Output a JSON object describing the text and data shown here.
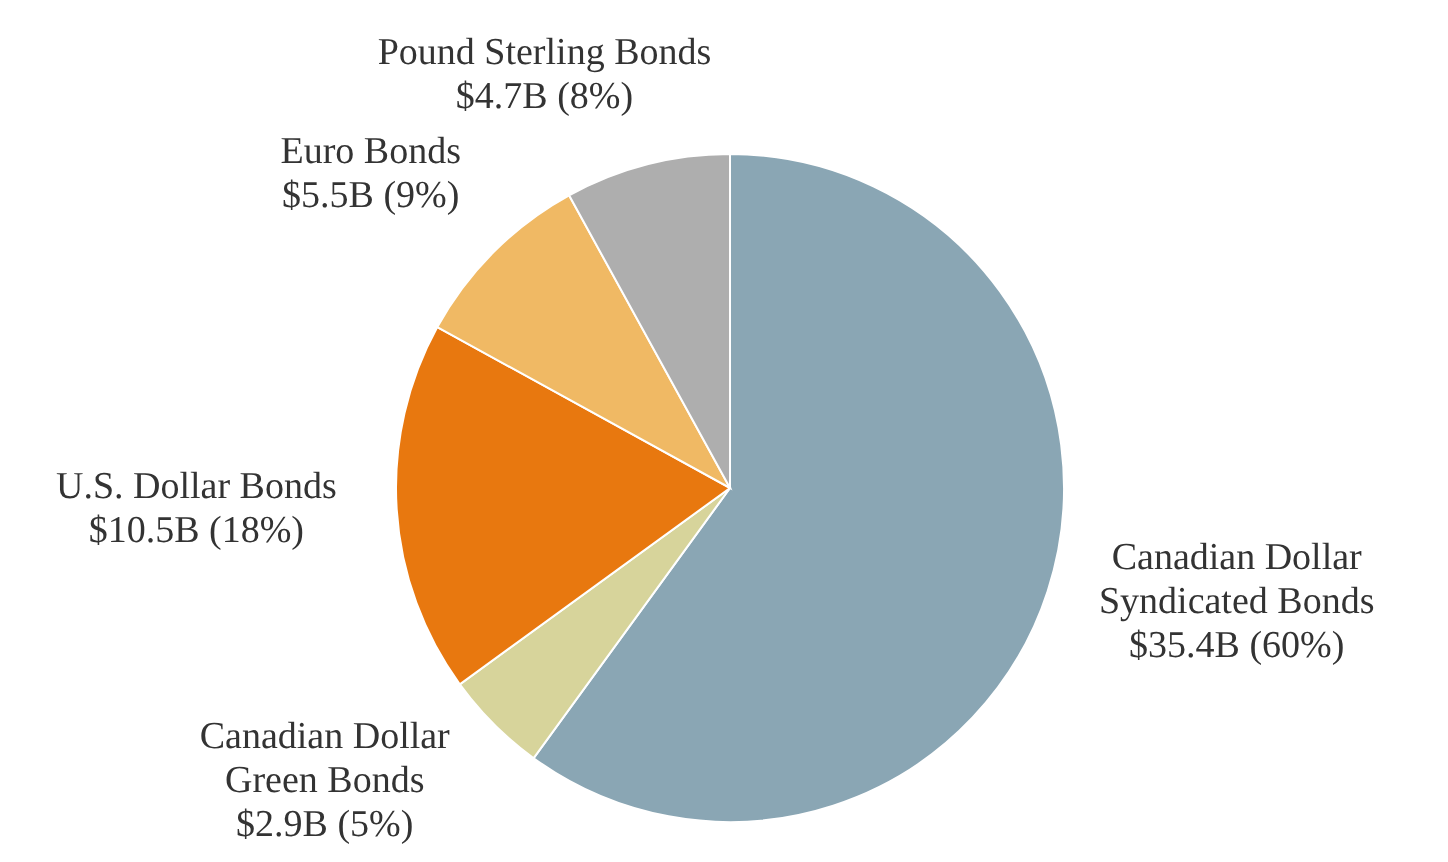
{
  "chart_data": {
    "type": "pie",
    "categories": [
      "Canadian Dollar Syndicated Bonds",
      "Canadian Dollar Green Bonds",
      "U.S. Dollar Bonds",
      "Euro Bonds",
      "Pound Sterling Bonds"
    ],
    "values": [
      60,
      5,
      18,
      9,
      8
    ],
    "value_labels": [
      "$35.4B (60%)",
      "$2.9B (5%)",
      "$10.5B (18%)",
      "$5.5B (9%)",
      "$4.7B (8%)"
    ],
    "colors": [
      "#8aa6b4",
      "#d7d49b",
      "#e8780f",
      "#f0b964",
      "#aeaeae"
    ]
  }
}
